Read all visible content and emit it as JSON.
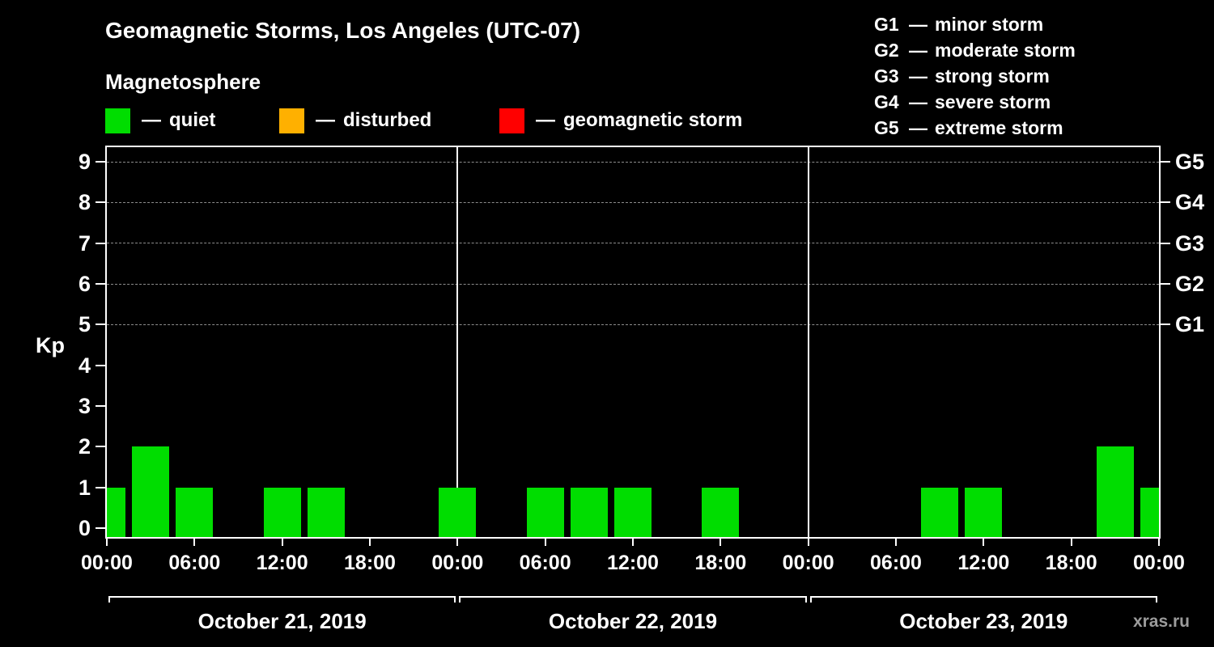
{
  "header": {
    "title": "Geomagnetic Storms, Los Angeles (UTC-07)",
    "subtitle": "Magnetosphere"
  },
  "legend": {
    "separator": "—",
    "items": [
      {
        "label": "quiet",
        "color": "#00dd00"
      },
      {
        "label": "disturbed",
        "color": "#ffb000"
      },
      {
        "label": "geomagnetic storm",
        "color": "#ff0000"
      }
    ]
  },
  "storm_scale": {
    "separator": "—",
    "items": [
      {
        "code": "G1",
        "label": "minor storm"
      },
      {
        "code": "G2",
        "label": "moderate storm"
      },
      {
        "code": "G3",
        "label": "strong storm"
      },
      {
        "code": "G4",
        "label": "severe storm"
      },
      {
        "code": "G5",
        "label": "extreme storm"
      }
    ]
  },
  "watermark": "xras.ru",
  "chart_data": {
    "type": "bar",
    "title": "Geomagnetic Storms, Los Angeles (UTC-07)",
    "subtitle": "Magnetosphere",
    "ylabel": "Kp",
    "ylim": [
      0,
      9
    ],
    "y_ticks": [
      0,
      1,
      2,
      3,
      4,
      5,
      6,
      7,
      8,
      9
    ],
    "grid_kp_levels": [
      5,
      6,
      7,
      8,
      9
    ],
    "right_axis": [
      {
        "kp": 9,
        "label": "G5"
      },
      {
        "kp": 8,
        "label": "G4"
      },
      {
        "kp": 7,
        "label": "G3"
      },
      {
        "kp": 6,
        "label": "G2"
      },
      {
        "kp": 5,
        "label": "G1"
      }
    ],
    "x_tick_labels": [
      "00:00",
      "06:00",
      "12:00",
      "18:00",
      "00:00",
      "06:00",
      "12:00",
      "18:00",
      "00:00",
      "06:00",
      "12:00",
      "18:00",
      "00:00"
    ],
    "interval_hours": 3,
    "bar_color": "#00dd00",
    "days": [
      {
        "date": "October 21, 2019",
        "kp_values": [
          1,
          2,
          1,
          0,
          1,
          1,
          0,
          0
        ]
      },
      {
        "date": "October 22, 2019",
        "kp_values": [
          1,
          0,
          1,
          1,
          1,
          0,
          1,
          0
        ]
      },
      {
        "date": "October 23, 2019",
        "kp_values": [
          0,
          0,
          0,
          1,
          1,
          0,
          0,
          2
        ]
      }
    ],
    "closing_boundary_kp": 1,
    "grid": "dashed horizontal lines at G1–G5 levels",
    "legend_position": "top-left"
  }
}
